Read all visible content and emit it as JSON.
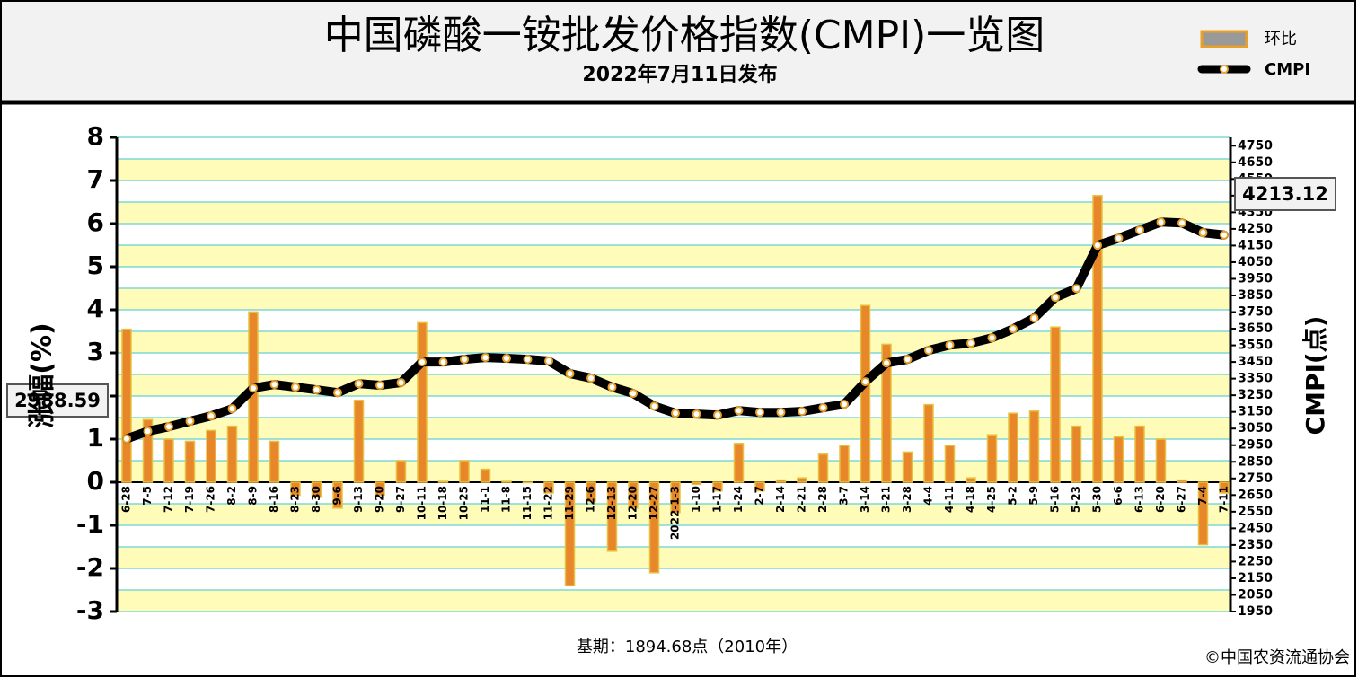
{
  "chart_data": {
    "type": "bar-line",
    "title": "中国磷酸一铵批发价格指数(CMPI)一览图",
    "subtitle": "2022年7月11日发布",
    "ylabel": "涨幅(%)",
    "y2label": "CMPI(点)",
    "footnote": "基期：1894.68点（2010年）",
    "source": "©中国农资流通协会",
    "categories": [
      "6-28",
      "7-5",
      "7-12",
      "7-19",
      "7-26",
      "8-2",
      "8-9",
      "8-16",
      "8-23",
      "8-30",
      "9-6",
      "9-13",
      "9-20",
      "9-27",
      "10-11",
      "10-18",
      "10-25",
      "11-1",
      "11-8",
      "11-15",
      "11-22",
      "11-29",
      "12-6",
      "12-13",
      "12-20",
      "12-27",
      "2022-1-3",
      "1-10",
      "1-17",
      "1-24",
      "2-7",
      "2-14",
      "2-21",
      "2-28",
      "3-7",
      "3-14",
      "3-21",
      "3-28",
      "4-4",
      "4-11",
      "4-18",
      "4-25",
      "5-2",
      "5-9",
      "5-16",
      "5-23",
      "5-30",
      "6-6",
      "6-13",
      "6-20",
      "6-27",
      "7-4",
      "7-11"
    ],
    "series": [
      {
        "name": "环比",
        "color": "#e8862a",
        "values": [
          3.55,
          1.45,
          1.0,
          0.95,
          1.2,
          1.3,
          3.95,
          0.95,
          -0.3,
          -0.35,
          -0.6,
          1.9,
          -0.3,
          0.5,
          3.7,
          0.02,
          0.5,
          0.3,
          0.02,
          0,
          -0.25,
          -2.4,
          -0.45,
          -1.6,
          -0.6,
          -2.1,
          -0.7,
          -0.05,
          -0.2,
          0.9,
          -0.2,
          0.05,
          0.1,
          0.65,
          0.85,
          4.1,
          3.2,
          0.7,
          1.8,
          0.85,
          0.1,
          1.1,
          1.6,
          1.65,
          3.6,
          1.3,
          6.65,
          1.05,
          1.3,
          1.0,
          0.05,
          -1.45,
          -0.25
        ]
      },
      {
        "name": "CMPI",
        "color": "#000000",
        "axis": "y2",
        "values": [
          2988.59,
          3034,
          3061,
          3094,
          3126,
          3169,
          3293,
          3315,
          3299,
          3283,
          3266,
          3320,
          3310,
          3326,
          3450,
          3450,
          3466,
          3477,
          3472,
          3466,
          3456,
          3380,
          3353,
          3299,
          3261,
          3185,
          3142,
          3137,
          3131,
          3158,
          3147,
          3147,
          3153,
          3175,
          3196,
          3331,
          3444,
          3466,
          3520,
          3552,
          3563,
          3595,
          3649,
          3714,
          3838,
          3892,
          4151,
          4194,
          4243,
          4291,
          4286,
          4227,
          4213.12
        ]
      }
    ],
    "ylim": [
      -3,
      8
    ],
    "yticks": [
      -3,
      -2,
      -1,
      0,
      1,
      2,
      3,
      4,
      5,
      6,
      7,
      8
    ],
    "y2lim": [
      1950,
      4800
    ],
    "y2ticks": [
      1950,
      2050,
      2150,
      2250,
      2350,
      2450,
      2550,
      2650,
      2750,
      2850,
      2950,
      3050,
      3150,
      3250,
      3350,
      3450,
      3550,
      3650,
      3750,
      3850,
      3950,
      4050,
      4150,
      4250,
      4350,
      4450,
      4550,
      4650,
      4750
    ],
    "grid": true
  }
}
